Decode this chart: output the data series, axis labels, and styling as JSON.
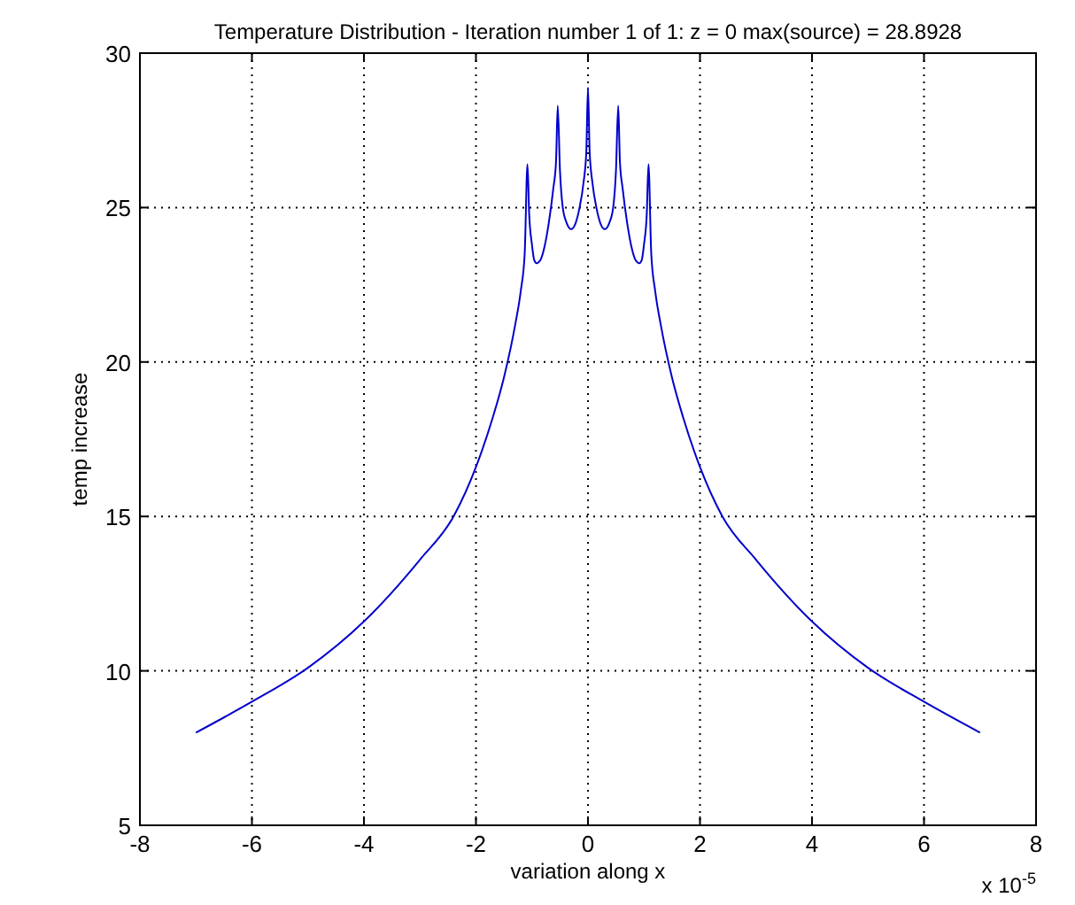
{
  "chart_data": {
    "type": "line",
    "title": "Temperature Distribution - Iteration number 1 of 1: z = 0  max(source) = 28.8928",
    "xlabel": "variation along x",
    "ylabel": "temp increase",
    "annotations": [
      "x 10$^{-5}$"
    ],
    "xlim": [
      -8,
      8
    ],
    "xticks": [
      -8,
      -6,
      -4,
      -2,
      0,
      2,
      4,
      6,
      8
    ],
    "ylim": [
      5,
      30
    ],
    "yticks": [
      5,
      10,
      15,
      20,
      25,
      30
    ],
    "grid": true,
    "marker": "none",
    "line_style": "solid",
    "series": [
      {
        "color": "#0000cc",
        "x": [
          -7,
          -6,
          -5,
          -4,
          -3,
          -2.4,
          -2,
          -1.7,
          -1.5,
          -1.3,
          -1.2,
          -1.13,
          -1.08,
          -1.05,
          -1.0,
          -0.96,
          -0.92,
          -0.85,
          -0.78,
          -0.7,
          -0.62,
          -0.57,
          -0.54,
          -0.5,
          -0.45,
          -0.38,
          -0.3,
          -0.22,
          -0.15,
          -0.08,
          -0.03,
          0,
          0.03,
          0.08,
          0.15,
          0.22,
          0.3,
          0.38,
          0.45,
          0.5,
          0.54,
          0.57,
          0.62,
          0.7,
          0.78,
          0.85,
          0.92,
          0.96,
          1.0,
          1.05,
          1.08,
          1.13,
          1.2,
          1.3,
          1.5,
          1.7,
          2,
          2.4,
          3,
          4,
          5,
          6,
          7
        ],
        "values": [
          8.0,
          9.0,
          10.1,
          11.6,
          13.6,
          15.0,
          16.6,
          18.2,
          19.5,
          21.2,
          22.3,
          23.5,
          26.4,
          24.8,
          23.8,
          23.3,
          23.2,
          23.3,
          23.7,
          24.5,
          25.6,
          26.5,
          28.3,
          26.2,
          25.0,
          24.5,
          24.3,
          24.5,
          25.0,
          25.8,
          26.8,
          28.89,
          26.8,
          25.8,
          25.0,
          24.5,
          24.3,
          24.5,
          25.0,
          26.2,
          28.3,
          26.5,
          25.6,
          24.5,
          23.7,
          23.3,
          23.2,
          23.3,
          23.8,
          24.8,
          26.4,
          23.5,
          22.3,
          21.2,
          19.5,
          18.2,
          16.6,
          15.0,
          13.6,
          11.6,
          10.1,
          9.0,
          8.0
        ]
      }
    ]
  }
}
